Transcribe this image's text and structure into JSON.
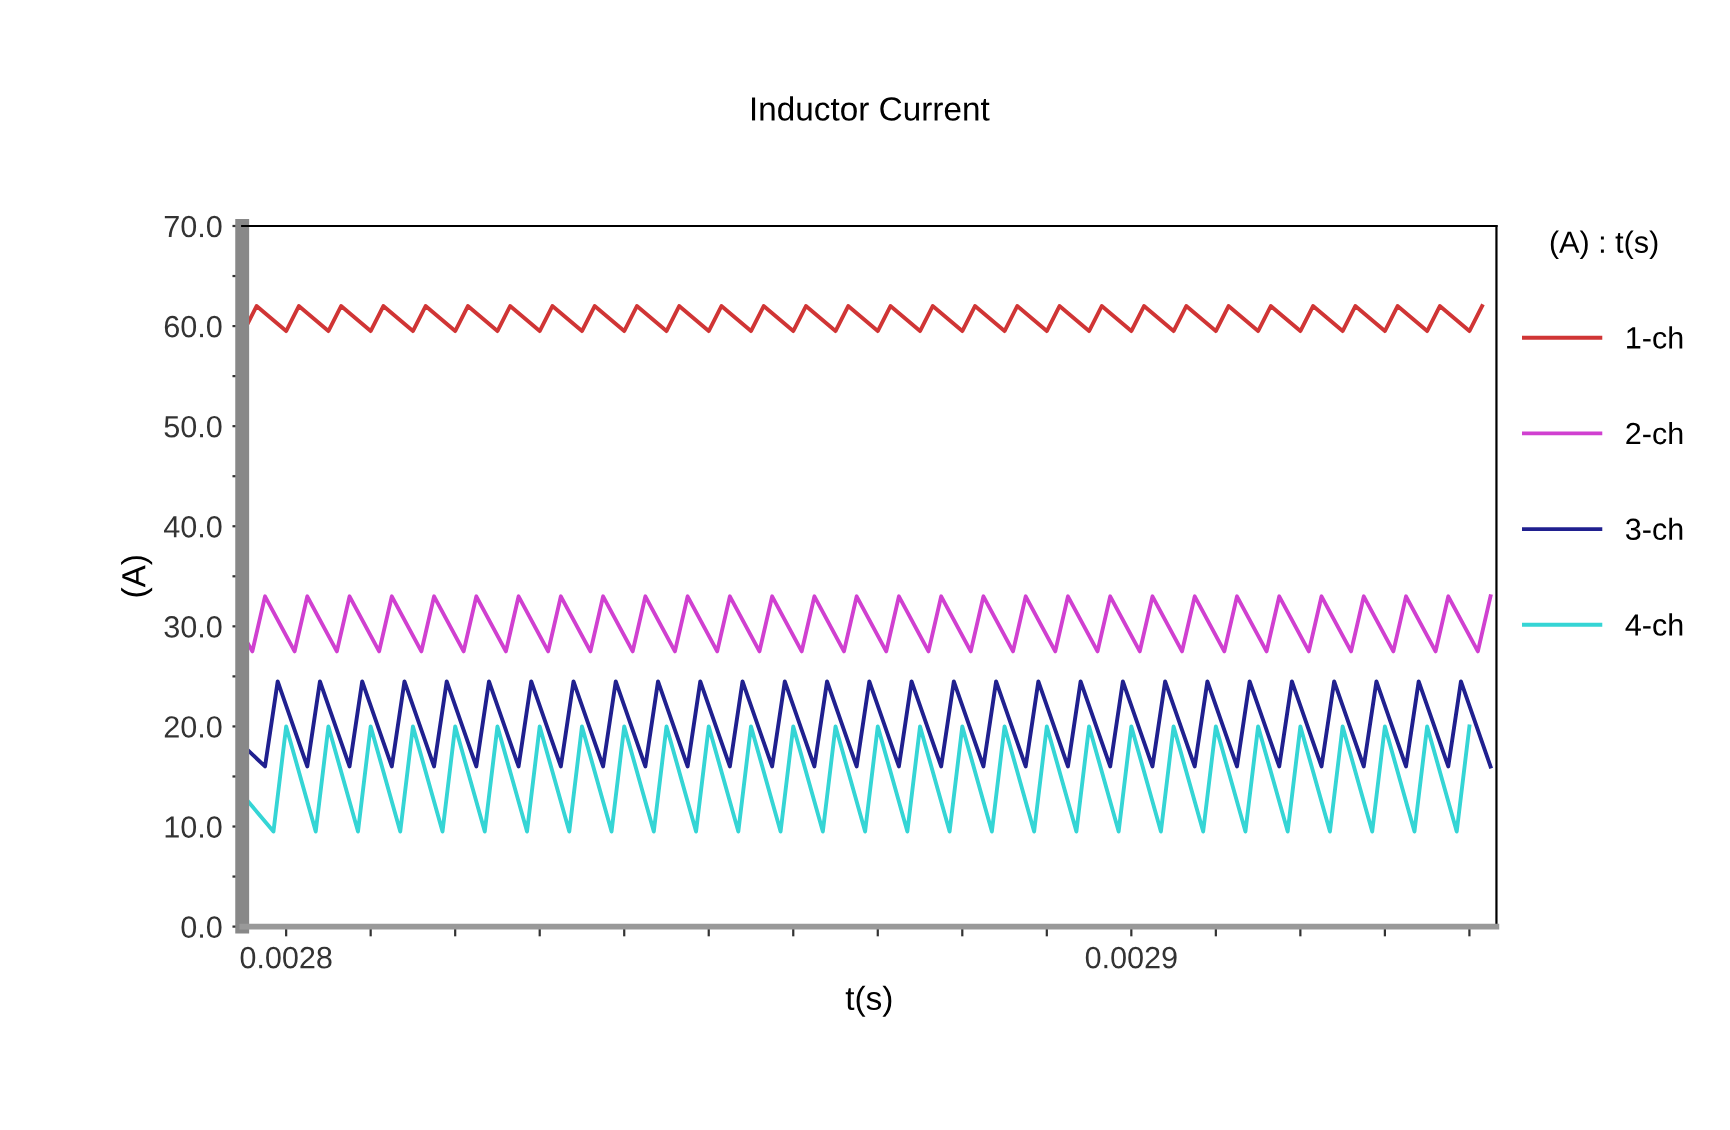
{
  "chart_data": {
    "type": "line",
    "title": "Inductor Current",
    "xlabel": "t(s)",
    "ylabel": "(A)",
    "legend_title": "(A) : t(s)",
    "legend": "right",
    "grid": false,
    "marker": "none",
    "line_style": "solid",
    "xlim": [
      0.0027948,
      0.0029432
    ],
    "ylim": [
      0,
      70
    ],
    "xticks": [
      {
        "value": 0.0028,
        "label": "0.0028"
      },
      {
        "value": 0.00281,
        "label": null
      },
      {
        "value": 0.00282,
        "label": null
      },
      {
        "value": 0.00283,
        "label": null
      },
      {
        "value": 0.00284,
        "label": null
      },
      {
        "value": 0.00285,
        "label": null
      },
      {
        "value": 0.00286,
        "label": null
      },
      {
        "value": 0.00287,
        "label": null
      },
      {
        "value": 0.00288,
        "label": null
      },
      {
        "value": 0.00289,
        "label": null
      },
      {
        "value": 0.0029,
        "label": "0.0029"
      },
      {
        "value": 0.00291,
        "label": null
      },
      {
        "value": 0.00292,
        "label": null
      },
      {
        "value": 0.00293,
        "label": null
      },
      {
        "value": 0.00294,
        "label": null
      }
    ],
    "yticks": [
      {
        "value": 0,
        "label": "0.0"
      },
      {
        "value": 5,
        "label": null
      },
      {
        "value": 10,
        "label": "10.0"
      },
      {
        "value": 15,
        "label": null
      },
      {
        "value": 20,
        "label": "20.0"
      },
      {
        "value": 25,
        "label": null
      },
      {
        "value": 30,
        "label": "30.0"
      },
      {
        "value": 35,
        "label": null
      },
      {
        "value": 40,
        "label": "40.0"
      },
      {
        "value": 45,
        "label": null
      },
      {
        "value": 50,
        "label": "50.0"
      },
      {
        "value": 55,
        "label": null
      },
      {
        "value": 60,
        "label": "60.0"
      },
      {
        "value": 65,
        "label": null
      },
      {
        "value": 70,
        "label": "70.0"
      }
    ],
    "series": [
      {
        "name": "1-ch",
        "color": "#d03535",
        "x": [
          0.002795,
          0.0027965,
          0.0028,
          0.0028015,
          0.002805,
          0.0028065,
          0.00281,
          0.0028115,
          0.002815,
          0.0028165,
          0.00282,
          0.0028215,
          0.002825,
          0.0028265,
          0.00283,
          0.0028315,
          0.002835,
          0.0028365,
          0.00284,
          0.0028415,
          0.002845,
          0.0028465,
          0.00285,
          0.0028515,
          0.002855,
          0.0028565,
          0.00286,
          0.0028615,
          0.002865,
          0.0028665,
          0.00287,
          0.0028715,
          0.002875,
          0.0028765,
          0.00288,
          0.0028815,
          0.002885,
          0.0028865,
          0.00289,
          0.0028915,
          0.002895,
          0.0028965,
          0.0029,
          0.0029015,
          0.002905,
          0.0029065,
          0.00291,
          0.0029115,
          0.002915,
          0.0029165,
          0.00292,
          0.0029215,
          0.002925,
          0.0029265,
          0.00293,
          0.0029315,
          0.002935,
          0.0029365,
          0.00294,
          0.0029415
        ],
        "values": [
          59.5,
          62,
          59.5,
          62,
          59.5,
          62,
          59.5,
          62,
          59.5,
          62,
          59.5,
          62,
          59.5,
          62,
          59.5,
          62,
          59.5,
          62,
          59.5,
          62,
          59.5,
          62,
          59.5,
          62,
          59.5,
          62,
          59.5,
          62,
          59.5,
          62,
          59.5,
          62,
          59.5,
          62,
          59.5,
          62,
          59.5,
          62,
          59.5,
          62,
          59.5,
          62,
          59.5,
          62,
          59.5,
          62,
          59.5,
          62,
          59.5,
          62,
          59.5,
          62,
          59.5,
          62,
          59.5,
          62,
          59.5,
          62,
          59.5,
          62
        ]
      },
      {
        "name": "2-ch",
        "color": "#d040d0",
        "x": [
          0.002795,
          0.002796,
          0.0027975,
          0.002801,
          0.0028025,
          0.002806,
          0.0028075,
          0.002811,
          0.0028125,
          0.002816,
          0.0028175,
          0.002821,
          0.0028225,
          0.002826,
          0.0028275,
          0.002831,
          0.0028325,
          0.002836,
          0.0028375,
          0.002841,
          0.0028425,
          0.002846,
          0.0028475,
          0.002851,
          0.0028525,
          0.002856,
          0.0028575,
          0.002861,
          0.0028625,
          0.002866,
          0.0028675,
          0.002871,
          0.0028725,
          0.002876,
          0.0028775,
          0.002881,
          0.0028825,
          0.002886,
          0.0028875,
          0.002891,
          0.0028925,
          0.002896,
          0.0028975,
          0.002901,
          0.0029025,
          0.002906,
          0.0029075,
          0.002911,
          0.0029125,
          0.002916,
          0.0029175,
          0.002921,
          0.0029225,
          0.002926,
          0.0029275,
          0.002931,
          0.0029325,
          0.002936,
          0.0029375,
          0.002941,
          0.0029425
        ],
        "values": [
          29,
          27.5,
          33,
          27.5,
          33,
          27.5,
          33,
          27.5,
          33,
          27.5,
          33,
          27.5,
          33,
          27.5,
          33,
          27.5,
          33,
          27.5,
          33,
          27.5,
          33,
          27.5,
          33,
          27.5,
          33,
          27.5,
          33,
          27.5,
          33,
          27.5,
          33,
          27.5,
          33,
          27.5,
          33,
          27.5,
          33,
          27.5,
          33,
          27.5,
          33,
          27.5,
          33,
          27.5,
          33,
          27.5,
          33,
          27.5,
          33,
          27.5,
          33,
          27.5,
          33,
          27.5,
          33,
          27.5,
          33,
          27.5,
          33,
          27.5,
          33
        ]
      },
      {
        "name": "3-ch",
        "color": "#20208f",
        "x": [
          0.002795,
          0.0027975,
          0.002799,
          0.0028025,
          0.002804,
          0.0028075,
          0.002809,
          0.0028125,
          0.002814,
          0.0028175,
          0.002819,
          0.0028225,
          0.002824,
          0.0028275,
          0.002829,
          0.0028325,
          0.002834,
          0.0028375,
          0.002839,
          0.0028425,
          0.002844,
          0.0028475,
          0.002849,
          0.0028525,
          0.002854,
          0.0028575,
          0.002859,
          0.0028625,
          0.002864,
          0.0028675,
          0.002869,
          0.0028725,
          0.002874,
          0.0028775,
          0.002879,
          0.0028825,
          0.002884,
          0.0028875,
          0.002889,
          0.0028925,
          0.002894,
          0.0028975,
          0.002899,
          0.0029025,
          0.002904,
          0.0029075,
          0.002909,
          0.0029125,
          0.002914,
          0.0029175,
          0.002919,
          0.0029225,
          0.002924,
          0.0029275,
          0.002929,
          0.0029325,
          0.002934,
          0.0029375,
          0.002939,
          0.0029425
        ],
        "values": [
          18,
          16,
          24.5,
          16,
          24.5,
          16,
          24.5,
          16,
          24.5,
          16,
          24.5,
          16,
          24.5,
          16,
          24.5,
          16,
          24.5,
          16,
          24.5,
          16,
          24.5,
          16,
          24.5,
          16,
          24.5,
          16,
          24.5,
          16,
          24.5,
          16,
          24.5,
          16,
          24.5,
          16,
          24.5,
          16,
          24.5,
          16,
          24.5,
          16,
          24.5,
          16,
          24.5,
          16,
          24.5,
          16,
          24.5,
          16,
          24.5,
          16,
          24.5,
          16,
          24.5,
          16,
          24.5,
          16,
          24.5,
          16,
          24.5,
          16
        ]
      },
      {
        "name": "4-ch",
        "color": "#35d5d5",
        "x": [
          0.002795,
          0.0027985,
          0.0028,
          0.0028035,
          0.002805,
          0.0028085,
          0.00281,
          0.0028135,
          0.002815,
          0.0028185,
          0.00282,
          0.0028235,
          0.002825,
          0.0028285,
          0.00283,
          0.0028335,
          0.002835,
          0.0028385,
          0.00284,
          0.0028435,
          0.002845,
          0.0028485,
          0.00285,
          0.0028535,
          0.002855,
          0.0028585,
          0.00286,
          0.0028635,
          0.002865,
          0.0028685,
          0.00287,
          0.0028735,
          0.002875,
          0.0028785,
          0.00288,
          0.0028835,
          0.002885,
          0.0028885,
          0.00289,
          0.0028935,
          0.002895,
          0.0028985,
          0.0029,
          0.0029035,
          0.002905,
          0.0029085,
          0.00291,
          0.0029135,
          0.002915,
          0.0029185,
          0.00292,
          0.0029235,
          0.002925,
          0.0029285,
          0.00293,
          0.0029335,
          0.002935,
          0.0029385,
          0.00294
        ],
        "values": [
          13,
          9.5,
          20,
          9.5,
          20,
          9.5,
          20,
          9.5,
          20,
          9.5,
          20,
          9.5,
          20,
          9.5,
          20,
          9.5,
          20,
          9.5,
          20,
          9.5,
          20,
          9.5,
          20,
          9.5,
          20,
          9.5,
          20,
          9.5,
          20,
          9.5,
          20,
          9.5,
          20,
          9.5,
          20,
          9.5,
          20,
          9.5,
          20,
          9.5,
          20,
          9.5,
          20,
          9.5,
          20,
          9.5,
          20,
          9.5,
          20,
          9.5,
          20,
          9.5,
          20,
          9.5,
          20,
          9.5,
          20,
          9.5,
          20
        ]
      }
    ]
  }
}
